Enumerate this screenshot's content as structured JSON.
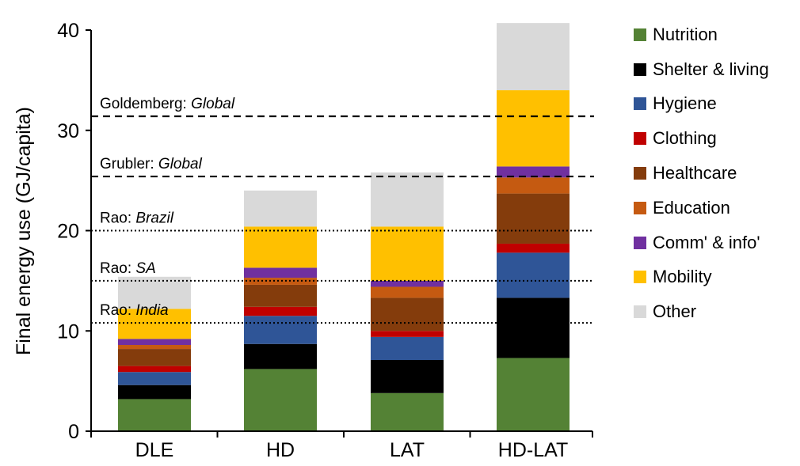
{
  "chart_data": {
    "type": "bar",
    "stacked": true,
    "categories": [
      "DLE",
      "HD",
      "LAT",
      "HD-LAT"
    ],
    "ylabel": "Final energy use (GJ/capita)",
    "ylim": [
      0,
      40
    ],
    "yticks": [
      "0",
      "10",
      "20",
      "30",
      "40"
    ],
    "legend_position": "right",
    "series": [
      {
        "name": "Nutrition",
        "color": "#548235",
        "values": [
          3.2,
          6.2,
          3.8,
          7.3
        ]
      },
      {
        "name": "Shelter & living",
        "color": "#000000",
        "values": [
          1.4,
          2.5,
          3.3,
          6.0
        ]
      },
      {
        "name": "Hygiene",
        "color": "#2f5597",
        "values": [
          1.3,
          2.8,
          2.3,
          4.5
        ]
      },
      {
        "name": "Clothing",
        "color": "#c00000",
        "values": [
          0.6,
          0.9,
          0.6,
          0.9
        ]
      },
      {
        "name": "Healthcare",
        "color": "#843c0c",
        "values": [
          1.7,
          2.2,
          3.3,
          5.0
        ]
      },
      {
        "name": "Education",
        "color": "#c55a11",
        "values": [
          0.4,
          0.7,
          1.1,
          1.6
        ]
      },
      {
        "name": "Comm' & info'",
        "color": "#7030a0",
        "values": [
          0.6,
          1.0,
          0.6,
          1.1
        ]
      },
      {
        "name": "Mobility",
        "color": "#ffc000",
        "values": [
          3.0,
          4.1,
          5.4,
          7.6
        ]
      },
      {
        "name": "Other",
        "color": "#d9d9d9",
        "values": [
          3.2,
          3.6,
          5.4,
          6.7
        ]
      }
    ],
    "reference_lines": [
      {
        "value": 31.4,
        "style": "dashed",
        "author": "Goldemberg:",
        "region": "Global"
      },
      {
        "value": 25.4,
        "style": "dashed",
        "author": "Grubler:",
        "region": "Global"
      },
      {
        "value": 20.0,
        "style": "dotted",
        "author": "Rao:",
        "region": "Brazil"
      },
      {
        "value": 15.0,
        "style": "dotted",
        "author": "Rao:",
        "region": "SA"
      },
      {
        "value": 10.8,
        "style": "dotted",
        "author": "Rao:",
        "region": "India"
      }
    ]
  }
}
